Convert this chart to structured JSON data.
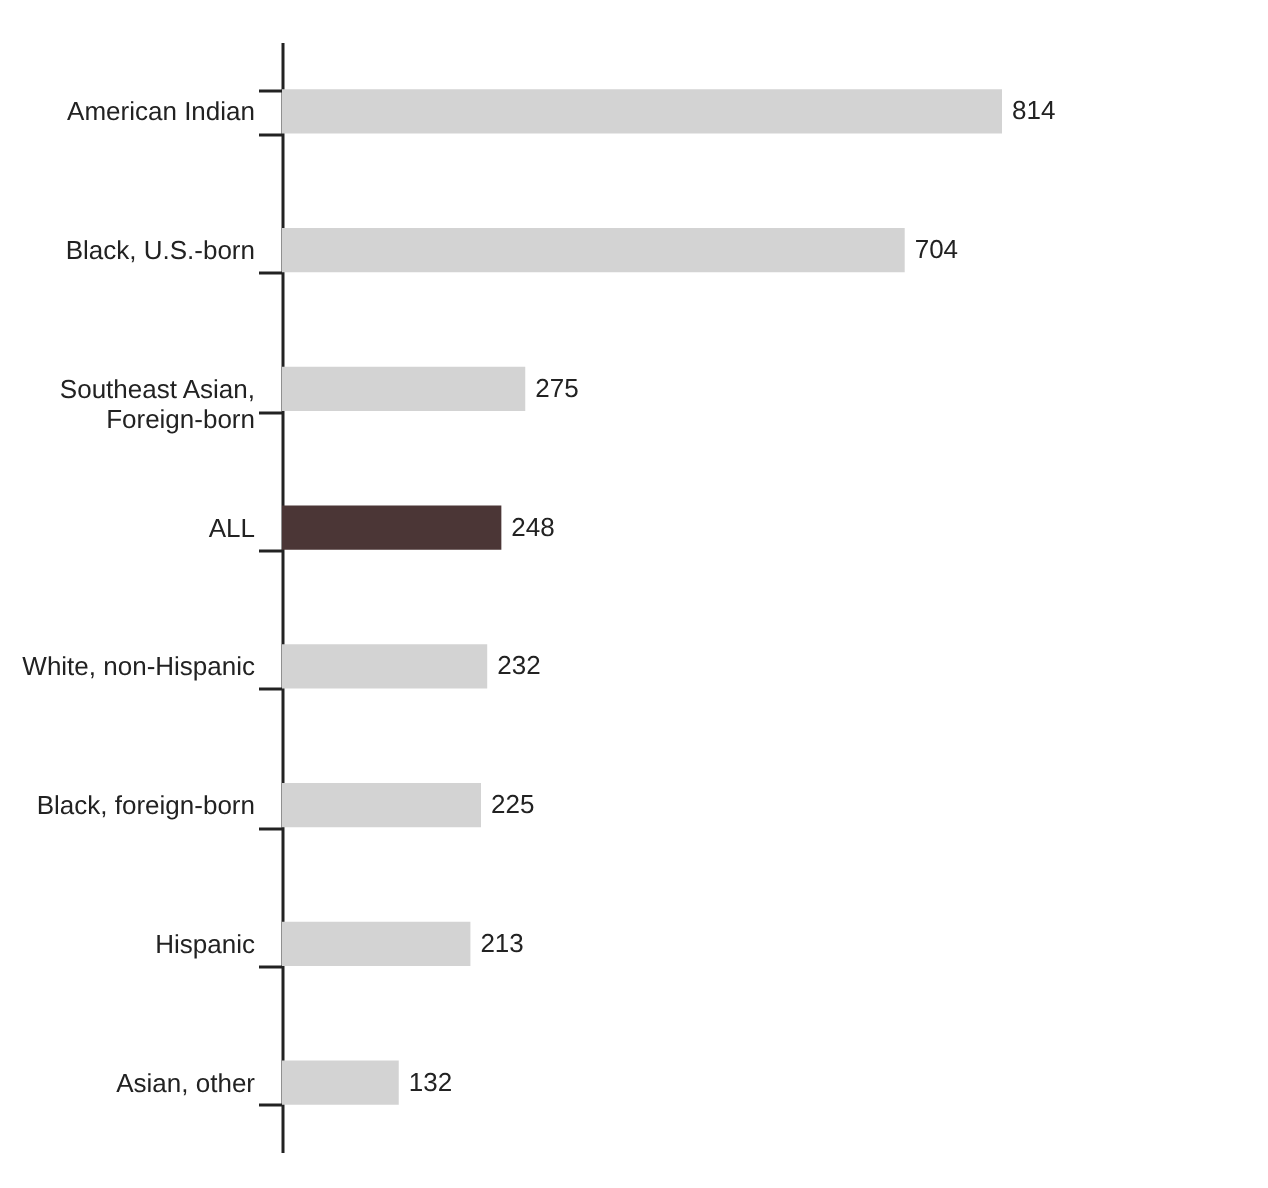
{
  "chart_data": {
    "type": "bar",
    "orientation": "horizontal",
    "categories": [
      "American Indian",
      "Black, U.S.-born",
      "Southeast Asian, Foreign-born",
      "ALL",
      "White, non-Hispanic",
      "Black, foreign-born",
      "Hispanic",
      "Asian, other"
    ],
    "values": [
      814,
      704,
      275,
      248,
      232,
      225,
      213,
      132
    ],
    "colors": [
      "#d3d3d3",
      "#d3d3d3",
      "#d3d3d3",
      "#4b3636",
      "#d3d3d3",
      "#d3d3d3",
      "#d3d3d3",
      "#d3d3d3"
    ],
    "data_labels": true,
    "grid": false,
    "legend": false
  }
}
